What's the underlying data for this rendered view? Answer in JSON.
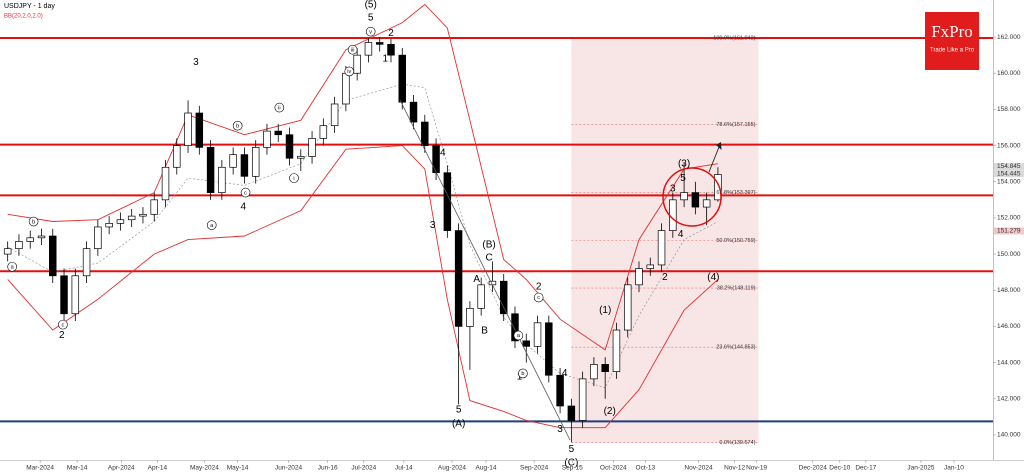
{
  "chart_data": {
    "type": "candlestick",
    "title": "USDJPY - 1 day",
    "indicator": "BB(20,2.0,2.0)",
    "logo": {
      "name": "FxPro",
      "tagline": "Trade Like a Pro"
    },
    "xlim": [
      -0.68,
      87.4
    ],
    "ylim": [
      137.84,
      164.05
    ],
    "yticks": [
      {
        "value": 140,
        "label": "140.000"
      },
      {
        "value": 142,
        "label": "142.000"
      },
      {
        "value": 144,
        "label": "144.000"
      },
      {
        "value": 146,
        "label": "146.000"
      },
      {
        "value": 148,
        "label": "148.000"
      },
      {
        "value": 150,
        "label": "150.000"
      },
      {
        "value": 152,
        "label": "152.000"
      },
      {
        "value": 154,
        "label": "154.000"
      },
      {
        "value": 156,
        "label": "156.000"
      },
      {
        "value": 158,
        "label": "158.000"
      },
      {
        "value": 160,
        "label": "160.000"
      },
      {
        "value": 162,
        "label": "162.000"
      }
    ],
    "xticks": [
      {
        "value": 2.88,
        "label": "Mar-2024"
      },
      {
        "value": 6.16,
        "label": "Mar-14"
      },
      {
        "value": 10.08,
        "label": "Apr-2024"
      },
      {
        "value": 13.28,
        "label": "Apr-14"
      },
      {
        "value": 17.45,
        "label": "May-2024"
      },
      {
        "value": 20.39,
        "label": "May-14"
      },
      {
        "value": 24.92,
        "label": "Jun-2024"
      },
      {
        "value": 28.39,
        "label": "Jun-16"
      },
      {
        "value": 31.59,
        "label": "Jul-2024"
      },
      {
        "value": 35.14,
        "label": "Jul-14"
      },
      {
        "value": 39.41,
        "label": "Aug-2024"
      },
      {
        "value": 42.43,
        "label": "Aug-14"
      },
      {
        "value": 46.7,
        "label": "Sep-2024"
      },
      {
        "value": 50.08,
        "label": "Sep-15"
      },
      {
        "value": 53.72,
        "label": "Oct-2024"
      },
      {
        "value": 56.56,
        "label": "Oct-13"
      },
      {
        "value": 61.28,
        "label": "Nov-2024"
      },
      {
        "value": 64.48,
        "label": "Nov-12"
      },
      {
        "value": 66.43,
        "label": "Nov-19"
      },
      {
        "value": 71.41,
        "label": "Dec-2024"
      },
      {
        "value": 73.81,
        "label": "Dec-10"
      },
      {
        "value": 76.12,
        "label": "Dec-17"
      },
      {
        "value": 81.01,
        "label": "Jan-2025"
      },
      {
        "value": 83.94,
        "label": "Jan-10"
      }
    ],
    "up_color": "#ffffff",
    "down_color": "#000000",
    "open": [
      150.0,
      150.3,
      150.7,
      150.9,
      151.0,
      148.8,
      146.7,
      148.8,
      150.3,
      151.5,
      151.7,
      151.9,
      152.1,
      152.2,
      153.0,
      154.8,
      156.0,
      157.8,
      155.9,
      153.4,
      154.8,
      155.5,
      154.3,
      155.9,
      156.8,
      156.6,
      155.3,
      155.4,
      156.4,
      157.1,
      158.3,
      160.0,
      161.0,
      161.7,
      161.6,
      161.0,
      158.4,
      157.3,
      156.0,
      154.5,
      151.3,
      146.0,
      147.0,
      148.3,
      148.5,
      146.7,
      145.2,
      144.9,
      146.2,
      143.3,
      141.6,
      140.8,
      143.1,
      143.9,
      143.5,
      145.8,
      148.3,
      149.2,
      149.4,
      151.3,
      153.0,
      153.4,
      152.6,
      153.0
    ],
    "high": [
      150.7,
      151.1,
      151.3,
      151.4,
      151.4,
      149.2,
      149.2,
      150.7,
      151.9,
      152.1,
      152.3,
      152.5,
      152.6,
      153.4,
      155.2,
      156.4,
      158.5,
      158.2,
      156.3,
      155.2,
      155.9,
      155.9,
      156.3,
      157.2,
      157.2,
      157.0,
      155.8,
      156.8,
      157.5,
      158.7,
      160.4,
      161.4,
      161.95,
      162.0,
      161.9,
      161.4,
      158.8,
      157.7,
      156.4,
      154.9,
      151.7,
      147.4,
      148.7,
      149.6,
      148.9,
      147.1,
      145.6,
      146.6,
      146.6,
      143.7,
      142.0,
      143.5,
      144.3,
      144.3,
      146.2,
      148.7,
      149.6,
      149.8,
      151.7,
      153.4,
      155.0,
      154.0,
      153.4,
      154.8
    ],
    "low": [
      149.6,
      149.9,
      150.3,
      150.5,
      148.4,
      146.2,
      146.3,
      148.4,
      149.9,
      151.1,
      151.3,
      151.5,
      151.7,
      151.8,
      152.6,
      154.4,
      155.6,
      155.5,
      153.0,
      153.0,
      154.4,
      153.9,
      153.9,
      155.5,
      156.2,
      154.9,
      154.6,
      155.0,
      156.0,
      156.7,
      157.9,
      159.6,
      160.6,
      161.2,
      160.6,
      158.0,
      156.9,
      155.6,
      154.1,
      150.9,
      141.7,
      143.6,
      146.6,
      147.9,
      146.3,
      144.8,
      144.0,
      144.5,
      142.9,
      141.2,
      139.6,
      140.4,
      142.7,
      142.0,
      143.1,
      145.4,
      147.9,
      148.8,
      149.0,
      150.9,
      152.6,
      152.2,
      151.6,
      152.9
    ],
    "close": [
      150.3,
      150.7,
      150.9,
      151.0,
      148.8,
      146.7,
      148.8,
      150.3,
      151.5,
      151.7,
      151.9,
      152.1,
      152.2,
      153.0,
      154.8,
      156.0,
      157.8,
      155.9,
      153.4,
      154.8,
      155.5,
      154.3,
      155.9,
      156.8,
      156.6,
      155.3,
      155.4,
      156.4,
      157.1,
      158.3,
      160.0,
      161.0,
      161.7,
      161.6,
      161.0,
      158.4,
      157.3,
      156.0,
      154.5,
      151.3,
      146.0,
      147.0,
      148.3,
      148.5,
      146.7,
      145.2,
      144.9,
      146.2,
      143.3,
      141.6,
      140.8,
      143.1,
      143.9,
      143.5,
      145.8,
      148.3,
      149.2,
      149.4,
      151.3,
      153.0,
      153.4,
      152.6,
      153.0,
      154.4
    ],
    "bands": {
      "x": [
        0,
        4,
        8,
        13,
        16,
        21,
        26,
        30,
        35,
        37,
        39,
        41,
        44,
        46,
        49,
        53,
        56,
        60,
        63
      ],
      "upper": [
        152.2,
        151.8,
        151.9,
        153.4,
        157.7,
        156.6,
        157.4,
        161.3,
        162.8,
        163.8,
        162.5,
        157.4,
        149.7,
        148.6,
        146.4,
        144.7,
        150.8,
        154.7,
        155.0
      ],
      "middle": [
        150.4,
        149.0,
        149.5,
        151.8,
        154.2,
        153.8,
        155.0,
        158.5,
        159.4,
        159.2,
        155.0,
        150.5,
        146.5,
        145.0,
        143.4,
        142.6,
        146.6,
        150.8,
        151.8
      ],
      "lower": [
        148.6,
        145.8,
        147.5,
        150.0,
        150.8,
        151.0,
        152.4,
        155.8,
        156.0,
        154.7,
        147.5,
        141.9,
        141.3,
        140.8,
        140.4,
        140.4,
        142.5,
        146.9,
        148.6
      ],
      "band_color": "#e03030",
      "middle_color": "#888888"
    },
    "levels": [
      {
        "value": 161.95,
        "color": "#e01010"
      },
      {
        "value": 156.05,
        "color": "#e01010"
      },
      {
        "value": 153.25,
        "color": "#e01010"
      },
      {
        "value": 149.05,
        "color": "#e01010"
      },
      {
        "value": 140.75,
        "color": "#1f3f7a"
      }
    ],
    "fib": {
      "xrange": [
        50.0,
        66.6
      ],
      "color": "#f6dcdc",
      "levels": [
        {
          "value": 161.942,
          "label": "100.0%(161.942)"
        },
        {
          "value": 157.155,
          "label": "78.6%(157.155)"
        },
        {
          "value": 153.397,
          "label": "61.8%(153.397)"
        },
        {
          "value": 150.759,
          "label": "50.0%(150.759)"
        },
        {
          "value": 148.119,
          "label": "38.2%(148.119)"
        },
        {
          "value": 144.853,
          "label": "23.6%(144.853)"
        },
        {
          "value": 139.574,
          "label": "0.0%(139.574)"
        }
      ]
    },
    "price_tags": [
      {
        "value": 154.845,
        "label": "154.845"
      },
      {
        "value": 154.445,
        "label": "154.445"
      },
      {
        "value": 151.279,
        "label": "151.279"
      }
    ],
    "annotations": [
      {
        "text": "(5)",
        "x": 32.2,
        "y": 163.77
      },
      {
        "text": "5",
        "x": 32.2,
        "y": 163.05
      },
      {
        "text": "2",
        "x": 34.0,
        "y": 162.2
      },
      {
        "text": "1",
        "x": 33.5,
        "y": 160.8
      },
      {
        "text": "3",
        "x": 16.7,
        "y": 160.6
      },
      {
        "text": "4",
        "x": 20.9,
        "y": 152.6
      },
      {
        "text": "2",
        "x": 4.8,
        "y": 145.5
      },
      {
        "text": "4",
        "x": 38.6,
        "y": 155.6
      },
      {
        "text": "3",
        "x": 37.7,
        "y": 151.6
      },
      {
        "text": "5",
        "x": 40.0,
        "y": 141.4
      },
      {
        "text": "(A)",
        "x": 40.0,
        "y": 140.6
      },
      {
        "text": "(B)",
        "x": 42.7,
        "y": 150.5
      },
      {
        "text": "C",
        "x": 42.7,
        "y": 149.8
      },
      {
        "text": "A",
        "x": 41.6,
        "y": 148.6
      },
      {
        "text": "B",
        "x": 42.3,
        "y": 145.75
      },
      {
        "text": "2",
        "x": 47.1,
        "y": 148.2
      },
      {
        "text": "1",
        "x": 45.4,
        "y": 143.2
      },
      {
        "text": "4",
        "x": 49.4,
        "y": 143.4
      },
      {
        "text": "3",
        "x": 49.0,
        "y": 140.3
      },
      {
        "text": "5",
        "x": 50.0,
        "y": 139.2
      },
      {
        "text": "(C)",
        "x": 50.0,
        "y": 138.45
      },
      {
        "text": "(1)",
        "x": 53.0,
        "y": 146.9
      },
      {
        "text": "(2)",
        "x": 53.4,
        "y": 141.3
      },
      {
        "text": "(3)",
        "x": 60.0,
        "y": 155.0
      },
      {
        "text": "5",
        "x": 59.9,
        "y": 154.2
      },
      {
        "text": "3",
        "x": 59.0,
        "y": 153.6
      },
      {
        "text": "4",
        "x": 59.7,
        "y": 151.1
      },
      {
        "text": "2",
        "x": 58.3,
        "y": 148.7
      },
      {
        "text": "(4)",
        "x": 62.6,
        "y": 148.7
      },
      {
        "text": "a",
        "x": 0.4,
        "y": 149.3,
        "circled": true
      },
      {
        "text": "b",
        "x": 2.3,
        "y": 151.8,
        "circled": true
      },
      {
        "text": "c",
        "x": 4.9,
        "y": 146.1,
        "circled": true
      },
      {
        "text": "a",
        "x": 18.1,
        "y": 151.6,
        "circled": true
      },
      {
        "text": "b",
        "x": 20.4,
        "y": 157.1,
        "circled": true
      },
      {
        "text": "c",
        "x": 21.1,
        "y": 153.4,
        "circled": true
      },
      {
        "text": "i",
        "x": 25.4,
        "y": 154.2,
        "circled": true
      },
      {
        "text": "ii",
        "x": 24.1,
        "y": 158.1,
        "circled": true
      },
      {
        "text": "iii",
        "x": 30.6,
        "y": 161.3,
        "circled": true
      },
      {
        "text": "iv",
        "x": 30.3,
        "y": 160.1,
        "circled": true
      },
      {
        "text": "v",
        "x": 32.2,
        "y": 162.3,
        "circled": true
      },
      {
        "text": "a",
        "x": 45.3,
        "y": 145.5,
        "circled": true
      },
      {
        "text": "b",
        "x": 45.7,
        "y": 143.4,
        "circled": true
      },
      {
        "text": "c",
        "x": 47.1,
        "y": 147.6,
        "circled": true
      }
    ]
  }
}
